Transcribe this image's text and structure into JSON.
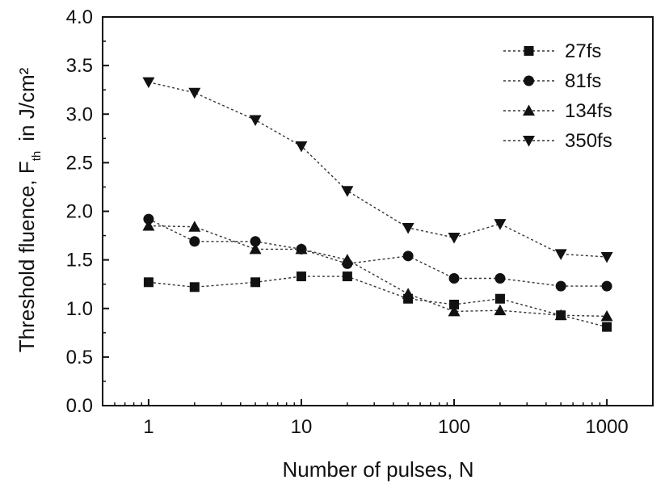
{
  "chart_data": {
    "type": "line",
    "xscale": "log",
    "xlabel": "Number of pulses, N",
    "ylabel_main": "Threshold fluence, F",
    "ylabel_sub": "th",
    "ylabel_unit": "in J/cm²",
    "xlim": [
      0.5,
      2000
    ],
    "ylim": [
      0,
      4.0
    ],
    "xticks": [
      1,
      10,
      100,
      1000
    ],
    "xtick_labels": [
      "1",
      "10",
      "100",
      "1000"
    ],
    "yticks": [
      0,
      0.5,
      1.0,
      1.5,
      2.0,
      2.5,
      3.0,
      3.5,
      4.0
    ],
    "ytick_labels": [
      "0.0",
      "0.5",
      "1.0",
      "1.5",
      "2.0",
      "2.5",
      "3.0",
      "3.5",
      "4.0"
    ],
    "grid": false,
    "legend_position": "top-right",
    "x": [
      1,
      2,
      5,
      10,
      20,
      50,
      100,
      200,
      500,
      1000
    ],
    "series": [
      {
        "name": "27fs",
        "marker": "square",
        "values": [
          1.27,
          1.22,
          1.27,
          1.33,
          1.33,
          1.1,
          1.04,
          1.1,
          0.93,
          0.81
        ]
      },
      {
        "name": "81fs",
        "marker": "circle",
        "values": [
          1.92,
          1.69,
          1.69,
          1.61,
          1.46,
          1.54,
          1.31,
          1.31,
          1.23,
          1.23
        ]
      },
      {
        "name": "134fs",
        "marker": "triangle-up",
        "values": [
          1.85,
          1.84,
          1.61,
          1.61,
          1.5,
          1.15,
          0.97,
          0.98,
          0.93,
          0.92
        ]
      },
      {
        "name": "350fs",
        "marker": "triangle-down",
        "values": [
          3.33,
          3.22,
          2.94,
          2.67,
          2.21,
          1.83,
          1.73,
          1.87,
          1.56,
          1.53
        ]
      }
    ],
    "colors": {
      "line": "#333333",
      "marker": "#111111",
      "axis": "#111111"
    }
  }
}
